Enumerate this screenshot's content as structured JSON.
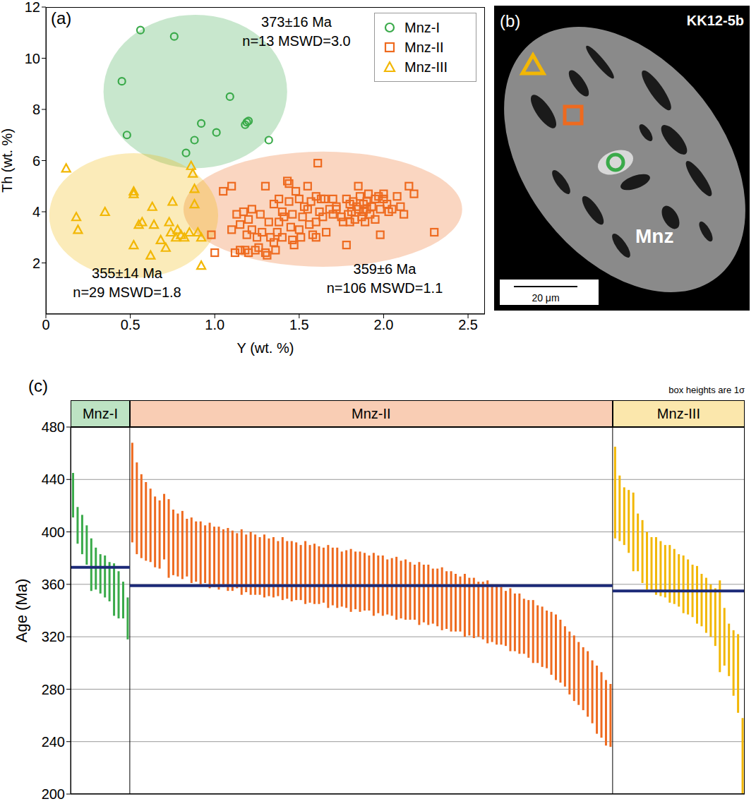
{
  "chart_data": [
    {
      "panel": "(a)",
      "type": "scatter",
      "x_label": "Y (wt. %)",
      "y_label": "Th (wt. %)",
      "xlim": [
        0,
        2.6
      ],
      "ylim": [
        0,
        12
      ],
      "xticks": [
        0,
        0.5,
        {
          "value": 1,
          "label": "1.0"
        },
        1.5,
        {
          "value": 2,
          "label": "2.0"
        },
        2.5
      ],
      "yticks": [
        2,
        4,
        6,
        8,
        10,
        12
      ],
      "legend": "top-right",
      "series": [
        {
          "name": "Mnz-I",
          "color": "#3aaa4a",
          "marker": "circle",
          "annotations": [
            "373±16 Ma",
            "n=13 MSWD=3.0"
          ],
          "x": [
            0.56,
            0.76,
            0.45,
            1.09,
            0.48,
            0.92,
            1.01,
            1.19,
            1.18,
            0.88,
            0.83,
            1.32,
            1.2
          ],
          "values": [
            11.1,
            10.85,
            9.1,
            8.5,
            7.0,
            7.45,
            7.1,
            7.5,
            7.4,
            6.8,
            6.3,
            6.8,
            7.55
          ]
        },
        {
          "name": "Mnz-II",
          "color": "#ee6a1f",
          "marker": "square",
          "annotations": [
            "359±6 Ma",
            "n=106 MSWD=1.1"
          ],
          "x": [
            0.98,
            1.0,
            1.05,
            1.1,
            1.1,
            1.12,
            1.13,
            1.15,
            1.15,
            1.17,
            1.18,
            1.19,
            1.2,
            1.2,
            1.22,
            1.22,
            1.25,
            1.26,
            1.27,
            1.28,
            1.3,
            1.3,
            1.31,
            1.32,
            1.33,
            1.35,
            1.35,
            1.37,
            1.38,
            1.38,
            1.4,
            1.4,
            1.41,
            1.43,
            1.44,
            1.44,
            1.45,
            1.46,
            1.47,
            1.48,
            1.5,
            1.5,
            1.51,
            1.52,
            1.53,
            1.55,
            1.55,
            1.56,
            1.57,
            1.58,
            1.6,
            1.6,
            1.61,
            1.62,
            1.63,
            1.64,
            1.65,
            1.66,
            1.68,
            1.7,
            1.72,
            1.72,
            1.75,
            1.76,
            1.78,
            1.78,
            1.79,
            1.8,
            1.8,
            1.81,
            1.82,
            1.83,
            1.84,
            1.85,
            1.85,
            1.86,
            1.87,
            1.88,
            1.88,
            1.89,
            1.9,
            1.9,
            1.91,
            1.92,
            1.93,
            1.95,
            1.95,
            1.97,
            1.98,
            1.98,
            2.0,
            2.0,
            2.02,
            2.03,
            2.05,
            2.08,
            2.1,
            2.12,
            2.15,
            2.18,
            2.3,
            1.46,
            1.36,
            1.24,
            1.6,
            1.7
          ],
          "values": [
            3.1,
            2.4,
            4.8,
            5.0,
            3.3,
            2.4,
            3.9,
            3.5,
            2.5,
            4.0,
            2.5,
            3.1,
            3.7,
            2.4,
            4.1,
            3.3,
            3.0,
            2.6,
            3.9,
            3.2,
            5.0,
            2.4,
            2.3,
            3.6,
            3.0,
            4.3,
            2.8,
            3.2,
            3.6,
            4.5,
            4.0,
            3.0,
            3.8,
            5.2,
            5.1,
            4.4,
            3.4,
            3.9,
            2.7,
            4.8,
            4.5,
            3.3,
            3.0,
            3.8,
            4.2,
            5.0,
            4.1,
            3.5,
            4.4,
            3.1,
            4.6,
            3.6,
            5.9,
            4.0,
            4.5,
            3.8,
            4.5,
            3.2,
            4.1,
            4.5,
            4.1,
            4.2,
            3.8,
            3.6,
            2.7,
            4.5,
            3.9,
            4.3,
            3.6,
            4.0,
            4.4,
            3.7,
            4.2,
            5.0,
            4.1,
            4.6,
            3.8,
            4.3,
            4.0,
            3.6,
            4.4,
            4.1,
            4.7,
            3.9,
            4.2,
            4.5,
            3.7,
            4.6,
            4.1,
            3.1,
            4.5,
            4.7,
            4.3,
            4.0,
            4.1,
            4.6,
            4.2,
            3.9,
            5.0,
            4.7,
            3.2,
            2.9,
            2.5,
            2.5,
            3.0,
            3.9
          ]
        },
        {
          "name": "Mnz-III",
          "color": "#f2b705",
          "marker": "triangle",
          "annotations": [
            "355±14 Ma",
            "n=29 MSWD=1.8"
          ],
          "x": [
            0.12,
            0.18,
            0.19,
            0.35,
            0.52,
            0.52,
            0.52,
            0.57,
            0.63,
            0.62,
            0.64,
            0.71,
            0.73,
            0.75,
            0.77,
            0.78,
            0.8,
            0.82,
            0.86,
            0.87,
            0.88,
            0.88,
            0.9,
            0.92,
            0.92,
            0.85,
            0.74,
            0.68,
            0.55
          ],
          "values": [
            5.7,
            3.8,
            3.3,
            4.0,
            4.8,
            4.7,
            2.7,
            3.6,
            4.2,
            2.3,
            3.5,
            2.6,
            3.6,
            4.4,
            3.0,
            3.3,
            3.1,
            3.0,
            5.8,
            5.5,
            4.9,
            4.3,
            3.2,
            3.0,
            1.9,
            3.2,
            3.2,
            2.9,
            3.5
          ]
        }
      ]
    },
    {
      "panel": "(c)",
      "type": "errorbar",
      "y_label": "Age (Ma)",
      "note": "box heights are 1σ",
      "ylim": [
        200,
        480
      ],
      "yticks": [
        200,
        240,
        280,
        320,
        360,
        400,
        440,
        480
      ],
      "grid": true,
      "tick_labels": "y",
      "series": [
        {
          "name": "Mnz-I",
          "color": "#3aaa4a",
          "mean": 373,
          "values": [
            428,
            405,
            398,
            390,
            375,
            372,
            368,
            366,
            362,
            356,
            352,
            348,
            334
          ],
          "errors": [
            17,
            14,
            15,
            15,
            20,
            16,
            15,
            16,
            15,
            20,
            18,
            14,
            16
          ]
        },
        {
          "name": "Mnz-II",
          "color": "#ee6a1f",
          "mean": 359,
          "values": [
            430,
            418,
            412,
            408,
            405,
            400,
            398,
            404,
            395,
            392,
            390,
            390,
            388,
            386,
            385,
            384,
            383,
            382,
            381,
            380,
            380,
            379,
            378,
            378,
            377,
            376,
            376,
            375,
            374,
            374,
            373,
            373,
            372,
            372,
            371,
            370,
            370,
            369,
            369,
            368,
            368,
            367,
            367,
            366,
            366,
            365,
            364,
            364,
            363,
            363,
            362,
            362,
            361,
            360,
            360,
            359,
            358,
            358,
            357,
            356,
            356,
            355,
            354,
            353,
            353,
            352,
            351,
            350,
            349,
            348,
            347,
            346,
            345,
            344,
            343,
            342,
            341,
            340,
            339,
            338,
            337,
            336,
            334,
            333,
            331,
            330,
            328,
            326,
            324,
            322,
            320,
            318,
            315,
            312,
            309,
            305,
            300,
            296,
            292,
            288,
            284,
            278,
            272,
            268,
            262,
            260
          ],
          "errors": [
            38,
            35,
            32,
            30,
            28,
            27,
            26,
            25,
            30,
            25,
            24,
            26,
            22,
            25,
            23,
            24,
            22,
            25,
            23,
            24,
            22,
            24,
            23,
            21,
            25,
            22,
            24,
            23,
            22,
            24,
            22,
            23,
            21,
            24,
            22,
            23,
            22,
            21,
            24,
            22,
            23,
            22,
            21,
            24,
            22,
            23,
            21,
            22,
            24,
            22,
            23,
            22,
            21,
            24,
            22,
            23,
            21,
            22,
            24,
            22,
            23,
            22,
            21,
            24,
            22,
            23,
            21,
            22,
            24,
            22,
            23,
            22,
            21,
            24,
            22,
            23,
            21,
            22,
            24,
            22,
            23,
            22,
            21,
            24,
            22,
            23,
            21,
            22,
            24,
            22,
            23,
            22,
            24,
            25,
            24,
            23,
            24,
            25,
            24,
            24,
            25,
            24,
            26,
            25,
            25,
            24
          ]
        },
        {
          "name": "Mnz-III",
          "color": "#f2b705",
          "mean": 355,
          "values": [
            430,
            418,
            412,
            408,
            400,
            392,
            385,
            378,
            376,
            374,
            372,
            370,
            368,
            366,
            363,
            360,
            358,
            355,
            352,
            348,
            344,
            340,
            335,
            328,
            320,
            310,
            300,
            292,
            228
          ],
          "errors": [
            35,
            25,
            22,
            24,
            30,
            22,
            24,
            22,
            20,
            22,
            21,
            20,
            22,
            21,
            20,
            22,
            21,
            20,
            22,
            20,
            21,
            20,
            22,
            35,
            22,
            20,
            25,
            30,
            30
          ]
        }
      ]
    }
  ],
  "image_panel": {
    "label": "(b)",
    "sample": "KK12-5b",
    "mineral": "Mnz",
    "scale_bar": "20 μm"
  }
}
